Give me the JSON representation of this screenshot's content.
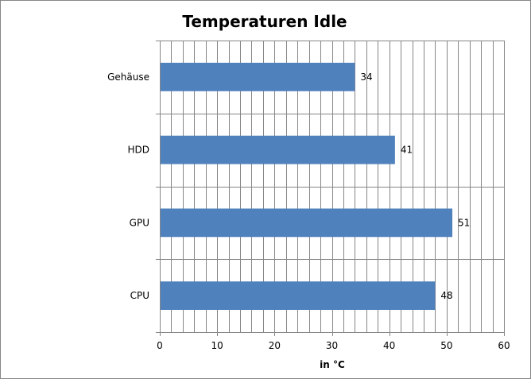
{
  "chart_data": {
    "type": "bar",
    "orientation": "horizontal",
    "title": "Temperaturen Idle",
    "xlabel": "in °C",
    "ylabel": "",
    "categories": [
      "Gehäuse",
      "HDD",
      "GPU",
      "CPU"
    ],
    "values": [
      34,
      41,
      51,
      48
    ],
    "data_labels": [
      "34",
      "41",
      "51",
      "48"
    ],
    "xlim": [
      0,
      60
    ],
    "x_ticks": [
      0,
      10,
      20,
      30,
      40,
      50,
      60
    ],
    "x_tick_labels": [
      "0",
      "10",
      "20",
      "30",
      "40",
      "50",
      "60"
    ],
    "x_minor_ticks_per_major": 5,
    "grid": true,
    "legend": "none",
    "colors": {
      "bar": "#4f81bd",
      "gridline": "#868686",
      "frame": "#868686"
    }
  }
}
